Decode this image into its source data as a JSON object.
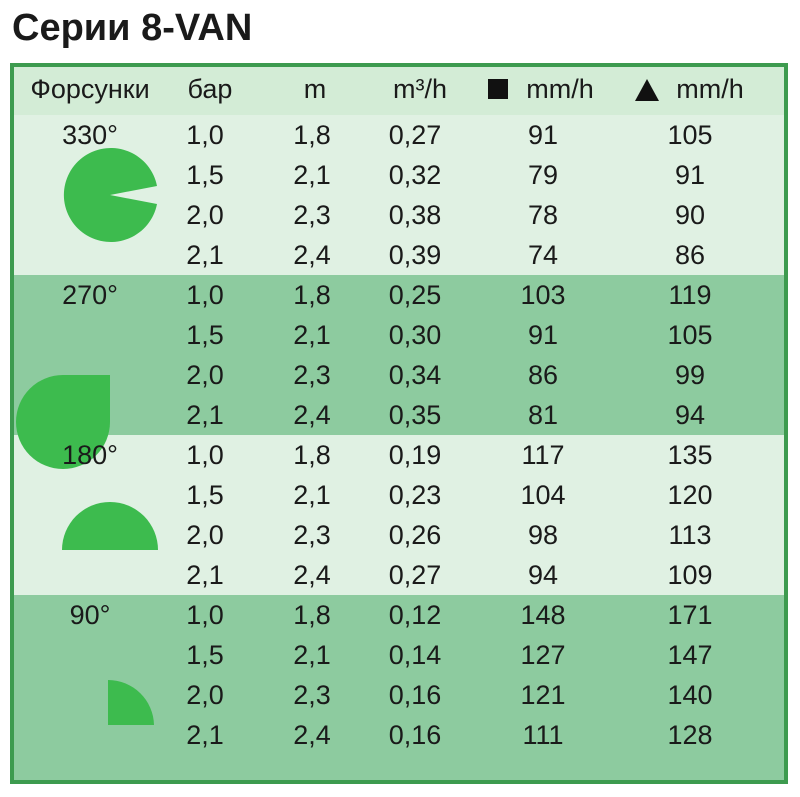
{
  "header": {
    "title": "Серии 8-VAN"
  },
  "table": {
    "columns": [
      "Форсунки",
      "бар",
      "m",
      "m³/h",
      "mm/h",
      "mm/h"
    ],
    "groups": [
      {
        "angle": "330°",
        "rows": [
          [
            "1,0",
            "1,8",
            "0,27",
            "91",
            "105"
          ],
          [
            "1,5",
            "2,1",
            "0,32",
            "79",
            "91"
          ],
          [
            "2,0",
            "2,3",
            "0,38",
            "78",
            "90"
          ],
          [
            "2,1",
            "2,4",
            "0,39",
            "74",
            "86"
          ]
        ]
      },
      {
        "angle": "270°",
        "rows": [
          [
            "1,0",
            "1,8",
            "0,25",
            "103",
            "119"
          ],
          [
            "1,5",
            "2,1",
            "0,30",
            "91",
            "105"
          ],
          [
            "2,0",
            "2,3",
            "0,34",
            "86",
            "99"
          ],
          [
            "2,1",
            "2,4",
            "0,35",
            "81",
            "94"
          ]
        ]
      },
      {
        "angle": "180°",
        "rows": [
          [
            "1,0",
            "1,8",
            "0,19",
            "117",
            "135"
          ],
          [
            "1,5",
            "2,1",
            "0,23",
            "104",
            "120"
          ],
          [
            "2,0",
            "2,3",
            "0,26",
            "98",
            "113"
          ],
          [
            "2,1",
            "2,4",
            "0,27",
            "94",
            "109"
          ]
        ]
      },
      {
        "angle": "90°",
        "rows": [
          [
            "1,0",
            "1,8",
            "0,12",
            "148",
            "171"
          ],
          [
            "1,5",
            "2,1",
            "0,14",
            "127",
            "147"
          ],
          [
            "2,0",
            "2,3",
            "0,16",
            "121",
            "140"
          ],
          [
            "2,1",
            "2,4",
            "0,16",
            "111",
            "128"
          ]
        ]
      }
    ]
  }
}
